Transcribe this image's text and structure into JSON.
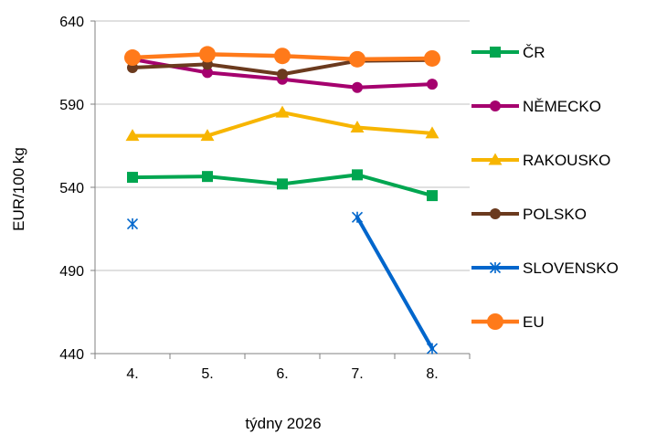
{
  "chart_data": {
    "type": "line",
    "title": "",
    "xlabel": "týdny 2026",
    "ylabel": "EUR/100 kg",
    "categories": [
      "4.",
      "5.",
      "6.",
      "7.",
      "8."
    ],
    "ylim": [
      440,
      640
    ],
    "yticks": [
      "440",
      "490",
      "540",
      "590",
      "640"
    ],
    "grid": "horizontal",
    "legend_position": "right",
    "series": [
      {
        "name": "ČR",
        "values": [
          546,
          546.5,
          542,
          547.5,
          535
        ],
        "color": "#00A650",
        "marker": "square"
      },
      {
        "name": "NĚMECKO",
        "values": [
          617,
          609,
          605,
          600,
          602
        ],
        "color": "#A5006E",
        "marker": "circle"
      },
      {
        "name": "RAKOUSKO",
        "values": [
          571,
          571,
          585,
          576,
          572.5
        ],
        "color": "#F7B500",
        "marker": "triangle"
      },
      {
        "name": "POLSKO",
        "values": [
          612,
          614,
          608,
          616,
          616.5
        ],
        "color": "#6B3A1E",
        "marker": "circle"
      },
      {
        "name": "SLOVENSKO",
        "values": [
          518,
          null,
          null,
          522,
          443
        ],
        "color": "#0066CC",
        "marker": "star"
      },
      {
        "name": "EU",
        "values": [
          618,
          620,
          619,
          617,
          617.5
        ],
        "color": "#FF7A1A",
        "marker": "circle"
      }
    ]
  }
}
